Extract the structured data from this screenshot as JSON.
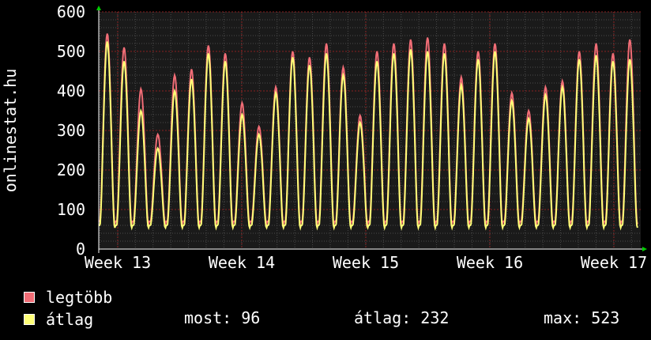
{
  "colors": {
    "background": "#000000",
    "grid": "#6e6e6e",
    "plot_bg": "#1a1a1a",
    "max_series": "#f16d76",
    "avg_series": "#ffff77",
    "axis_arrow": "#00cc00"
  },
  "chart_data": {
    "type": "line",
    "ylabel": "onlinestat.hu",
    "ylim": [
      0,
      600
    ],
    "y_ticks": [
      "0",
      "100",
      "200",
      "300",
      "400",
      "500",
      "600"
    ],
    "x_ticks": [
      "Week 13",
      "Week 14",
      "Week 15",
      "Week 16",
      "Week 17"
    ],
    "grid": true,
    "legend_position": "bottom-left",
    "series": [
      {
        "name": "legtöbb",
        "color": "#f16d76",
        "daily_peaks": [
          545,
          510,
          405,
          290,
          440,
          455,
          515,
          495,
          370,
          310,
          410,
          500,
          485,
          520,
          460,
          338,
          500,
          520,
          530,
          535,
          520,
          435,
          500,
          520,
          395,
          350,
          410,
          425,
          500,
          520,
          495,
          530
        ],
        "daily_min": 70
      },
      {
        "name": "átlag",
        "color": "#ffff77",
        "daily_peaks": [
          525,
          475,
          350,
          255,
          400,
          430,
          495,
          475,
          340,
          290,
          395,
          485,
          465,
          495,
          440,
          320,
          475,
          495,
          505,
          500,
          495,
          415,
          480,
          500,
          375,
          330,
          390,
          410,
          480,
          490,
          475,
          480
        ],
        "daily_min": 60
      }
    ]
  },
  "stats": {
    "most": "most: 96",
    "atlag": "átlag: 232",
    "max": "max: 523"
  }
}
